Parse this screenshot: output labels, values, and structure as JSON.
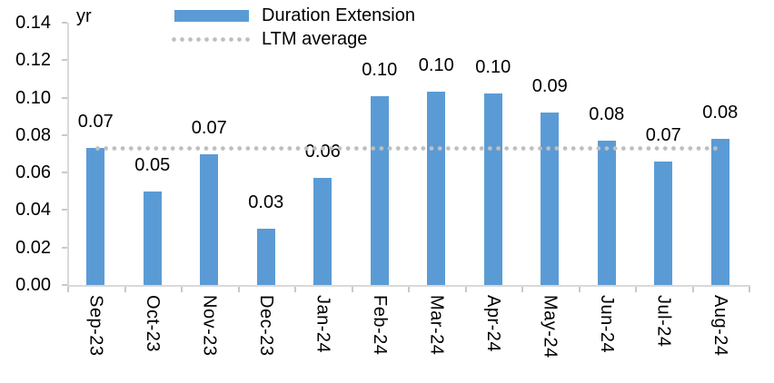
{
  "legend": {
    "items": [
      {
        "label": "Duration Extension",
        "swatch": "bar-swatch-icon",
        "color": "#5B9BD5"
      },
      {
        "label": "LTM average",
        "swatch": "dotted-line-swatch-icon",
        "color": "#BFBFBF"
      }
    ]
  },
  "chart_data": {
    "type": "bar",
    "title": "",
    "categories": [
      "Sep-23",
      "Oct-23",
      "Nov-23",
      "Dec-23",
      "Jan-24",
      "Feb-24",
      "Mar-24",
      "Apr-24",
      "May-24",
      "Jun-24",
      "Jul-24",
      "Aug-24"
    ],
    "series": [
      {
        "name": "Duration Extension",
        "type": "bar",
        "color": "#5B9BD5",
        "values": [
          0.073,
          0.05,
          0.07,
          0.03,
          0.057,
          0.101,
          0.103,
          0.102,
          0.092,
          0.077,
          0.066,
          0.078
        ],
        "data_labels": [
          "0.07",
          "0.05",
          "0.07",
          "0.03",
          "0.06",
          "0.10",
          "0.10",
          "0.10",
          "0.09",
          "0.08",
          "0.07",
          "0.08"
        ]
      },
      {
        "name": "LTM average",
        "type": "line",
        "line_style": "dotted",
        "color": "#BFBFBF",
        "value": 0.073
      }
    ],
    "y_axis": {
      "unit": "yr",
      "min": 0.0,
      "max": 0.14,
      "step": 0.02,
      "tick_labels": [
        "0.14",
        "0.12",
        "0.10",
        "0.08",
        "0.06",
        "0.04",
        "0.02",
        "0.00"
      ]
    },
    "grid": false,
    "legend_position": "top",
    "background": "#FFFFFF",
    "axis_color": "#D9D9D9"
  }
}
